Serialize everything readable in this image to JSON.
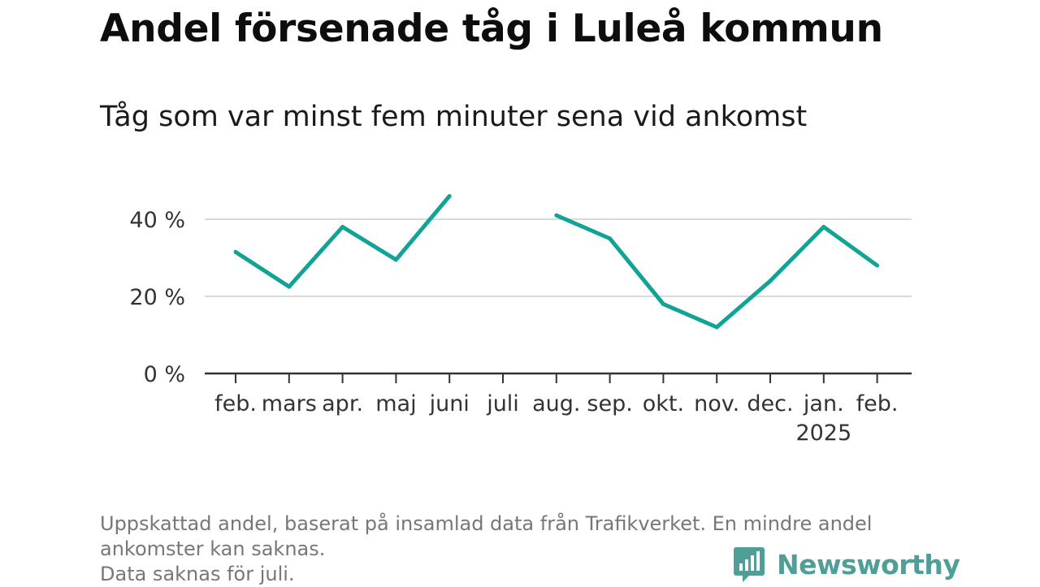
{
  "title": "Andel försenade tåg i Luleå kommun",
  "subtitle": "Tåg som var minst fem minuter sena vid ankomst",
  "chart_data": {
    "type": "line",
    "title": "Andel försenade tåg i Luleå kommun",
    "subtitle": "Tåg som var minst fem minuter sena vid ankomst",
    "xlabel": "",
    "ylabel": "",
    "categories": [
      "feb.",
      "mars",
      "apr.",
      "maj",
      "juni",
      "juli",
      "aug.",
      "sep.",
      "okt.",
      "nov.",
      "dec.",
      "jan.",
      "feb."
    ],
    "year_label": "2025",
    "year_label_under": "jan.",
    "series": [
      {
        "values": [
          31.5,
          22.5,
          38,
          29.5,
          46,
          null,
          41,
          35,
          18,
          12,
          24,
          38,
          28
        ]
      }
    ],
    "ylim": [
      0,
      47
    ],
    "yticks": [
      0,
      20,
      40
    ],
    "ytick_labels": [
      "0 %",
      "20 %",
      "40 %"
    ],
    "grid": true,
    "legend": "none",
    "line_color": "#11a396"
  },
  "footnote": {
    "lines": [
      "Uppskattad andel, baserat på insamlad data från Trafikverket. En mindre andel",
      "ankomster kan saknas.",
      "Data saknas för juli."
    ]
  },
  "brand": {
    "name": "Newsworthy",
    "icon": "newsworthy-logo-icon",
    "color": "#4f9e97"
  }
}
